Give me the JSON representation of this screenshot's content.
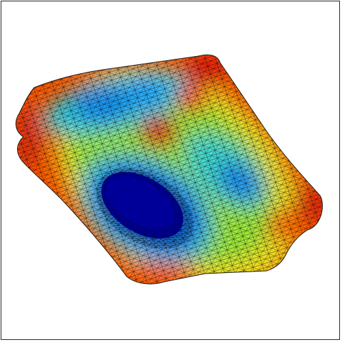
{
  "figure": {
    "subject": "mesh-field-plot",
    "colormap": "jet",
    "colors": {
      "low": "#00008f",
      "mid_low": "#0080ff",
      "mid": "#40e0c0",
      "mid_high": "#c8f020",
      "high": "#ff8000",
      "max": "#c00000",
      "mesh_lines": "#000000",
      "frame": "#222222",
      "background": "#ffffff"
    }
  }
}
